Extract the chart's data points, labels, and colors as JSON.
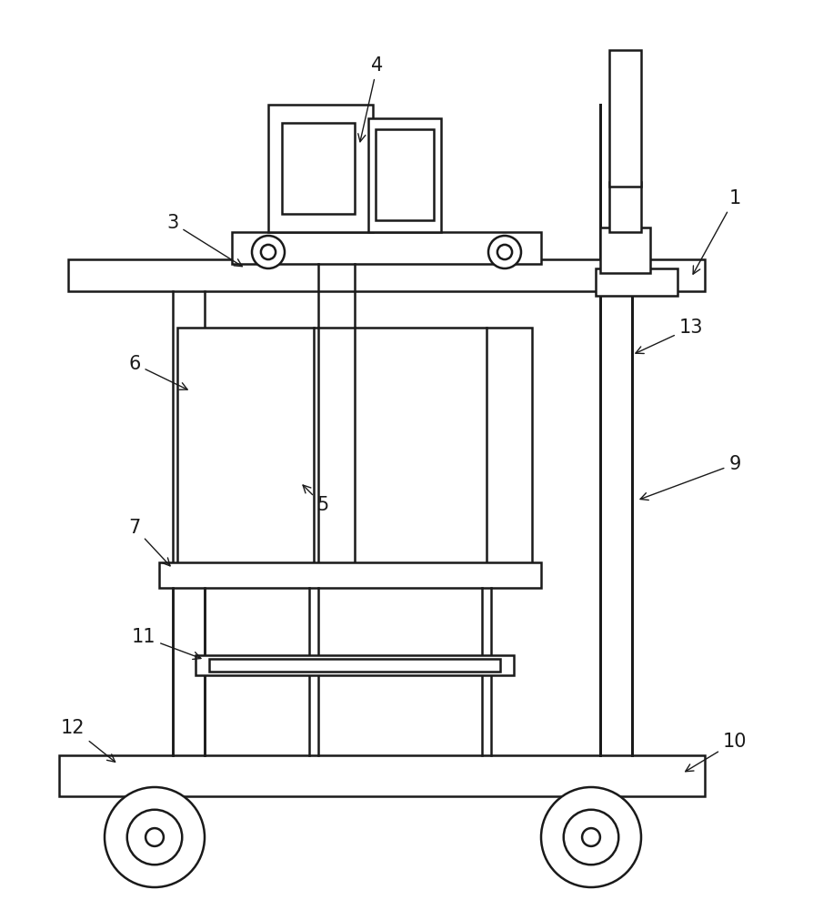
{
  "bg_color": "#ffffff",
  "line_color": "#1a1a1a",
  "line_width": 1.8,
  "figure_width": 8.95,
  "figure_height": 10.0
}
